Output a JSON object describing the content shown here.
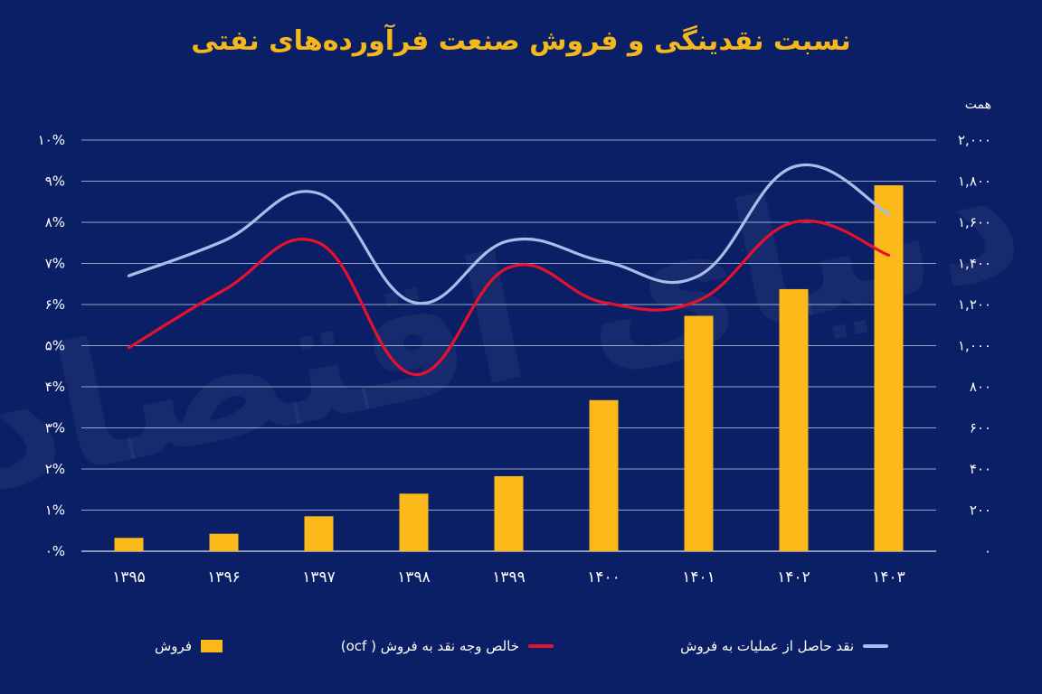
{
  "chart_data": {
    "type": "bar",
    "title": "نسبت نقدینگی و فروش صنعت فرآورده‌های نفتی",
    "categories": [
      "۱۳۹۵",
      "۱۳۹۶",
      "۱۳۹۷",
      "۱۳۹۸",
      "۱۳۹۹",
      "۱۴۰۰",
      "۱۴۰۱",
      "۱۴۰۲",
      "۱۴۰۳"
    ],
    "left_axis": {
      "ticks": [
        "۰%",
        "۱%",
        "۲%",
        "۳%",
        "۴%",
        "۵%",
        "۶%",
        "۷%",
        "۸%",
        "۹%",
        "۱۰%"
      ],
      "ylim": [
        0,
        10
      ]
    },
    "right_axis": {
      "unit": "همت",
      "ticks": [
        "۰",
        "۲۰۰",
        "۴۰۰",
        "۶۰۰",
        "۸۰۰",
        "۱,۰۰۰",
        "۱,۲۰۰",
        "۱,۴۰۰",
        "۱,۶۰۰",
        "۱,۸۰۰",
        "۲,۰۰۰"
      ],
      "ylim": [
        0,
        2000
      ]
    },
    "series": [
      {
        "name": "فروش",
        "type": "bar",
        "axis": "right",
        "color": "#fbb91a",
        "values": [
          65,
          85,
          170,
          280,
          365,
          735,
          1145,
          1275,
          1780
        ]
      },
      {
        "name": "خالص وجه نقد به فروش ( ocf)",
        "type": "line",
        "axis": "left",
        "color": "#e8112d",
        "values": [
          4.95,
          6.35,
          7.5,
          4.3,
          6.9,
          6.05,
          6.1,
          8.0,
          7.2
        ]
      },
      {
        "name": "نقد حاصل از عملیات به فروش",
        "type": "line",
        "axis": "left",
        "color": "#a9bdea",
        "values": [
          6.7,
          7.55,
          8.7,
          6.05,
          7.55,
          7.05,
          6.7,
          9.35,
          8.2
        ]
      }
    ],
    "grid": true,
    "legend": "bottom"
  }
}
